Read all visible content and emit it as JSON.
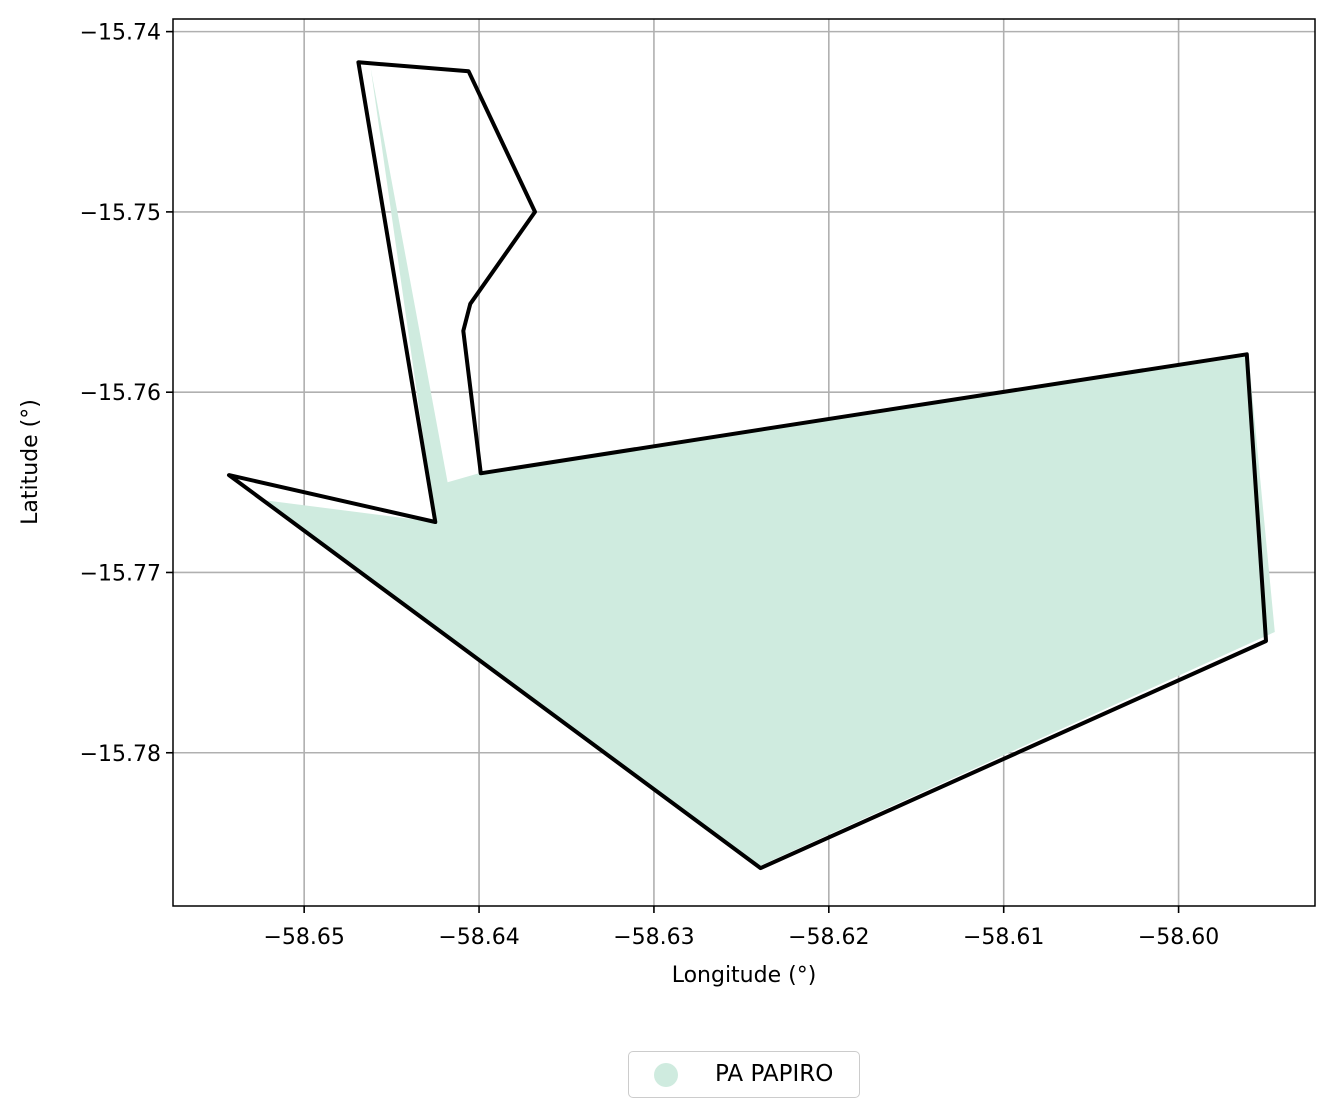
{
  "chart_data": {
    "type": "map",
    "xlabel": "Longitude (°)",
    "ylabel": "Latitude (°)",
    "xlim": [
      -58.6575,
      -58.5922
    ],
    "ylim": [
      -15.7885,
      -15.7393
    ],
    "xticks": [
      -58.65,
      -58.64,
      -58.63,
      -58.62,
      -58.61,
      -58.6
    ],
    "xtick_labels": [
      "−58.65",
      "−58.64",
      "−58.63",
      "−58.62",
      "−58.61",
      "−58.60"
    ],
    "yticks": [
      -15.74,
      -15.75,
      -15.76,
      -15.77,
      -15.78
    ],
    "ytick_labels": [
      "−15.74",
      "−15.75",
      "−15.76",
      "−15.77",
      "−15.78"
    ],
    "grid": true,
    "legend_position": "bottom-center",
    "series": [
      {
        "name": "PA PAPIRO",
        "color": "#cfebdf",
        "polygon": [
          [
            -58.6462,
            -15.742
          ],
          [
            -58.6418,
            -15.765
          ],
          [
            -58.64,
            -15.7645
          ],
          [
            -58.596,
            -15.758
          ],
          [
            -58.5945,
            -15.7733
          ],
          [
            -58.624,
            -15.7863
          ],
          [
            -58.6522,
            -15.766
          ],
          [
            -58.6425,
            -15.7672
          ]
        ]
      }
    ],
    "outline": {
      "color": "#000000",
      "polygon": [
        [
          -58.6469,
          -15.7417
        ],
        [
          -58.6406,
          -15.7422
        ],
        [
          -58.6368,
          -15.75
        ],
        [
          -58.6405,
          -15.7551
        ],
        [
          -58.6409,
          -15.7566
        ],
        [
          -58.6399,
          -15.7645
        ],
        [
          -58.6181,
          -15.7612
        ],
        [
          -58.5961,
          -15.7579
        ],
        [
          -58.595,
          -15.7738
        ],
        [
          -58.6239,
          -15.7864
        ],
        [
          -58.6543,
          -15.7646
        ],
        [
          -58.6425,
          -15.7672
        ]
      ]
    }
  }
}
